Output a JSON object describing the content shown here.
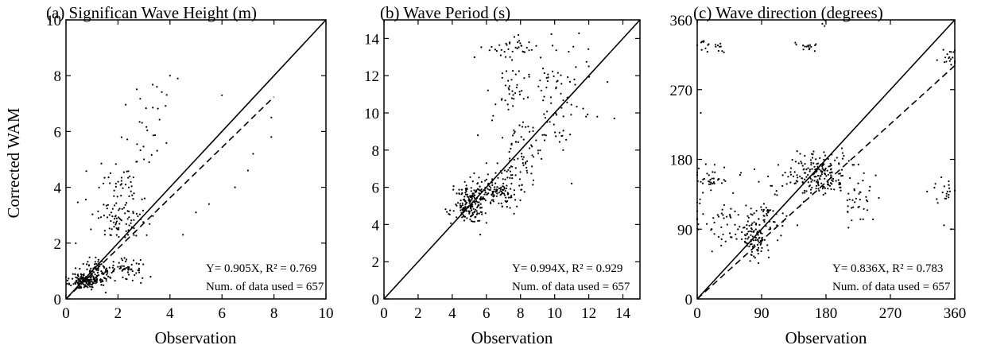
{
  "figure": {
    "y_label_shared": "Corrected WAM"
  },
  "chart_data": [
    {
      "type": "scatter",
      "title": "(a) Significan Wave Height (m)",
      "xlabel": "Observation",
      "ylabel": "Corrected WAM",
      "xlim": [
        0,
        10
      ],
      "ylim": [
        0,
        10
      ],
      "xticks": [
        0,
        2,
        4,
        6,
        8,
        10
      ],
      "yticks": [
        0,
        2,
        4,
        6,
        8,
        10
      ],
      "reference_line": {
        "style": "solid",
        "slope": 1,
        "from": 0,
        "to": 10
      },
      "fit_line": {
        "style": "dashed",
        "slope": 0.905,
        "from": 0,
        "to": 8
      },
      "annotation_1": "Y= 0.905X, R² = 0.769",
      "annotation_2": "Num. of data used = 657",
      "clusters": [
        {
          "cx": 0.75,
          "cy": 0.65,
          "sx": 0.28,
          "sy": 0.15,
          "n": 160,
          "seed": 11
        },
        {
          "cx": 1.3,
          "cy": 1.0,
          "sx": 0.35,
          "sy": 0.25,
          "n": 70,
          "seed": 12
        },
        {
          "cx": 2.2,
          "cy": 1.05,
          "sx": 0.45,
          "sy": 0.2,
          "n": 60,
          "seed": 13
        },
        {
          "cx": 2.2,
          "cy": 2.9,
          "sx": 0.6,
          "sy": 0.45,
          "n": 90,
          "seed": 14
        },
        {
          "cx": 2.2,
          "cy": 4.3,
          "sx": 0.45,
          "sy": 0.55,
          "n": 35,
          "seed": 15
        },
        {
          "cx": 3.2,
          "cy": 6.2,
          "sx": 0.5,
          "sy": 0.8,
          "n": 25,
          "seed": 16
        }
      ],
      "points": [
        [
          4.0,
          8.0
        ],
        [
          4.3,
          7.9
        ],
        [
          3.5,
          7.6
        ],
        [
          6.0,
          7.3
        ],
        [
          7.9,
          6.5
        ],
        [
          7.2,
          5.2
        ],
        [
          7.9,
          5.8
        ],
        [
          6.5,
          4.0
        ],
        [
          5.0,
          3.1
        ],
        [
          5.5,
          3.4
        ],
        [
          4.5,
          2.3
        ],
        [
          7.0,
          4.6
        ],
        [
          3.0,
          5.0
        ],
        [
          3.2,
          4.9
        ]
      ]
    },
    {
      "type": "scatter",
      "title": "(b) Wave Period (s)",
      "xlabel": "Observation",
      "ylabel": "",
      "xlim": [
        0,
        15
      ],
      "ylim": [
        0,
        15
      ],
      "xticks": [
        0,
        2,
        4,
        6,
        8,
        10,
        12,
        14
      ],
      "yticks": [
        0,
        2,
        4,
        6,
        8,
        10,
        12,
        14
      ],
      "reference_line": {
        "style": "solid",
        "slope": 1,
        "from": 0,
        "to": 15
      },
      "fit_line": null,
      "annotation_1": "Y= 0.994X, R² = 0.929",
      "annotation_2": "Num. of data used = 657",
      "clusters": [
        {
          "cx": 5.0,
          "cy": 5.0,
          "sx": 0.45,
          "sy": 0.5,
          "n": 170,
          "seed": 21
        },
        {
          "cx": 6.5,
          "cy": 5.8,
          "sx": 0.7,
          "sy": 0.45,
          "n": 140,
          "seed": 22
        },
        {
          "cx": 8.0,
          "cy": 7.5,
          "sx": 0.5,
          "sy": 0.8,
          "n": 60,
          "seed": 23
        },
        {
          "cx": 7.3,
          "cy": 11.0,
          "sx": 0.6,
          "sy": 0.9,
          "n": 40,
          "seed": 24
        },
        {
          "cx": 10.5,
          "cy": 11.5,
          "sx": 0.8,
          "sy": 1.0,
          "n": 45,
          "seed": 25
        },
        {
          "cx": 7.5,
          "cy": 13.6,
          "sx": 0.9,
          "sy": 0.3,
          "n": 35,
          "seed": 26
        },
        {
          "cx": 9.5,
          "cy": 9.5,
          "sx": 0.9,
          "sy": 0.9,
          "n": 35,
          "seed": 27
        }
      ],
      "points": [
        [
          12.5,
          9.8
        ],
        [
          13.5,
          9.7
        ],
        [
          11.0,
          6.2
        ],
        [
          10.5,
          8.0
        ],
        [
          5.5,
          8.8
        ],
        [
          6.0,
          7.3
        ],
        [
          12.0,
          12.5
        ],
        [
          8.5,
          13.8
        ]
      ]
    },
    {
      "type": "scatter",
      "title": "(c) Wave direction (degrees)",
      "xlabel": "Observation",
      "ylabel": "",
      "xlim": [
        0,
        360
      ],
      "ylim": [
        0,
        360
      ],
      "xticks": [
        0,
        90,
        180,
        270,
        360
      ],
      "yticks": [
        0,
        90,
        180,
        270,
        360
      ],
      "reference_line": {
        "style": "solid",
        "slope": 1,
        "from": 0,
        "to": 360
      },
      "fit_line": {
        "style": "dashed",
        "slope": 0.836,
        "from": 0,
        "to": 360
      },
      "annotation_1": "Y= 0.836X, R² = 0.783",
      "annotation_2": "Num. of data used = 657",
      "clusters": [
        {
          "cx": 170,
          "cy": 160,
          "sx": 20,
          "sy": 14,
          "n": 180,
          "seed": 31
        },
        {
          "cx": 80,
          "cy": 80,
          "sx": 12,
          "sy": 14,
          "n": 90,
          "seed": 32
        },
        {
          "cx": 40,
          "cy": 95,
          "sx": 25,
          "sy": 15,
          "n": 55,
          "seed": 33
        },
        {
          "cx": 225,
          "cy": 130,
          "sx": 12,
          "sy": 25,
          "n": 40,
          "seed": 34
        },
        {
          "cx": 20,
          "cy": 155,
          "sx": 15,
          "sy": 12,
          "n": 35,
          "seed": 35
        },
        {
          "cx": 120,
          "cy": 155,
          "sx": 25,
          "sy": 10,
          "n": 25,
          "seed": 36
        },
        {
          "cx": 20,
          "cy": 325,
          "sx": 10,
          "sy": 4,
          "n": 20,
          "seed": 37
        },
        {
          "cx": 150,
          "cy": 325,
          "sx": 8,
          "sy": 4,
          "n": 15,
          "seed": 38
        },
        {
          "cx": 345,
          "cy": 140,
          "sx": 10,
          "sy": 8,
          "n": 20,
          "seed": 39
        },
        {
          "cx": 350,
          "cy": 310,
          "sx": 6,
          "sy": 8,
          "n": 18,
          "seed": 40
        },
        {
          "cx": 100,
          "cy": 105,
          "sx": 15,
          "sy": 10,
          "n": 30,
          "seed": 41
        }
      ],
      "points": [
        [
          175,
          355
        ],
        [
          178,
          352
        ],
        [
          5,
          240
        ],
        [
          10,
          155
        ],
        [
          345,
          95
        ],
        [
          355,
          90
        ],
        [
          120,
          100
        ],
        [
          140,
          95
        ],
        [
          60,
          160
        ],
        [
          30,
          80
        ]
      ]
    }
  ]
}
